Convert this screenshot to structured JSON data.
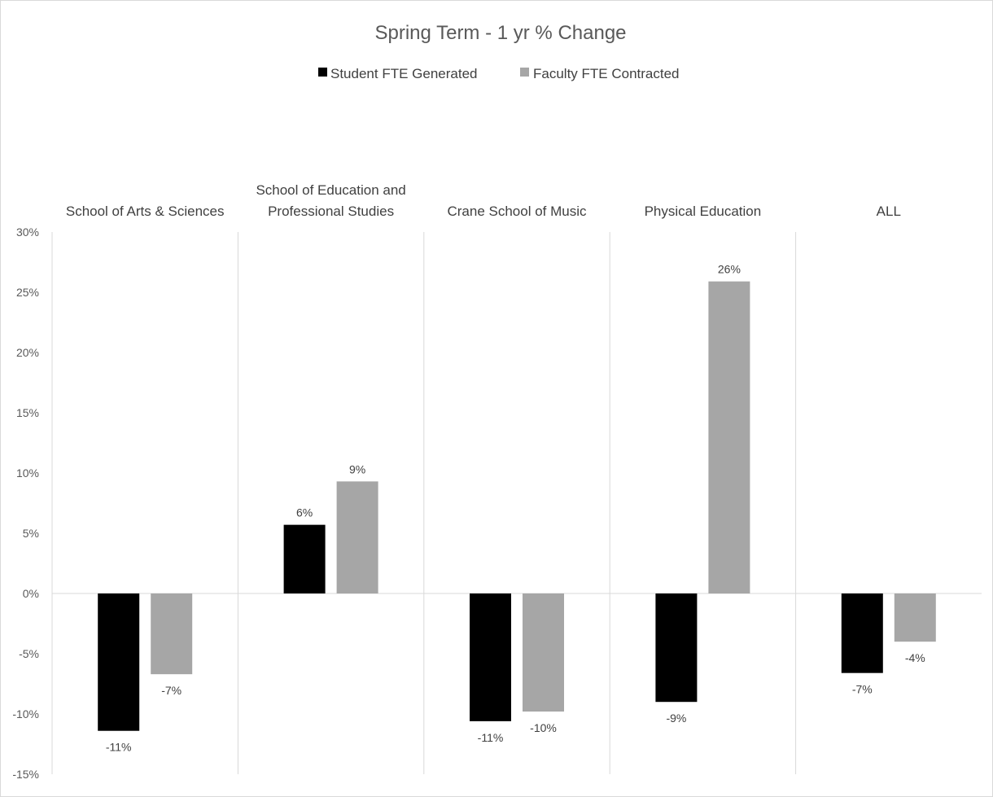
{
  "chart_data": {
    "type": "bar",
    "title": "Spring Term - 1 yr % Change",
    "legend_position": "top",
    "categories": [
      [
        "School of Arts & Sciences"
      ],
      [
        "School of Education and",
        "Professional Studies"
      ],
      [
        "Crane School of Music"
      ],
      [
        "Physical Education"
      ],
      [
        "ALL"
      ]
    ],
    "series": [
      {
        "name": "Student FTE Generated",
        "color": "#000000",
        "values": [
          -11.4,
          5.7,
          -10.6,
          -9.0,
          -6.6
        ],
        "labels": [
          "-11%",
          "6%",
          "-11%",
          "-9%",
          "-7%"
        ]
      },
      {
        "name": "Faculty FTE Contracted",
        "color": "#a6a6a6",
        "values": [
          -6.7,
          9.3,
          -9.8,
          25.9,
          -4.0
        ],
        "labels": [
          "-7%",
          "9%",
          "-10%",
          "26%",
          "-4%"
        ]
      }
    ],
    "y_axis": {
      "min": -15,
      "max": 30,
      "ticks": [
        30,
        25,
        20,
        15,
        10,
        5,
        0,
        -5,
        -10,
        -15
      ],
      "tick_labels": [
        "30%",
        "25%",
        "20%",
        "15%",
        "10%",
        "5%",
        "0%",
        "-5%",
        "-10%",
        "-15%"
      ]
    },
    "grid": false
  }
}
